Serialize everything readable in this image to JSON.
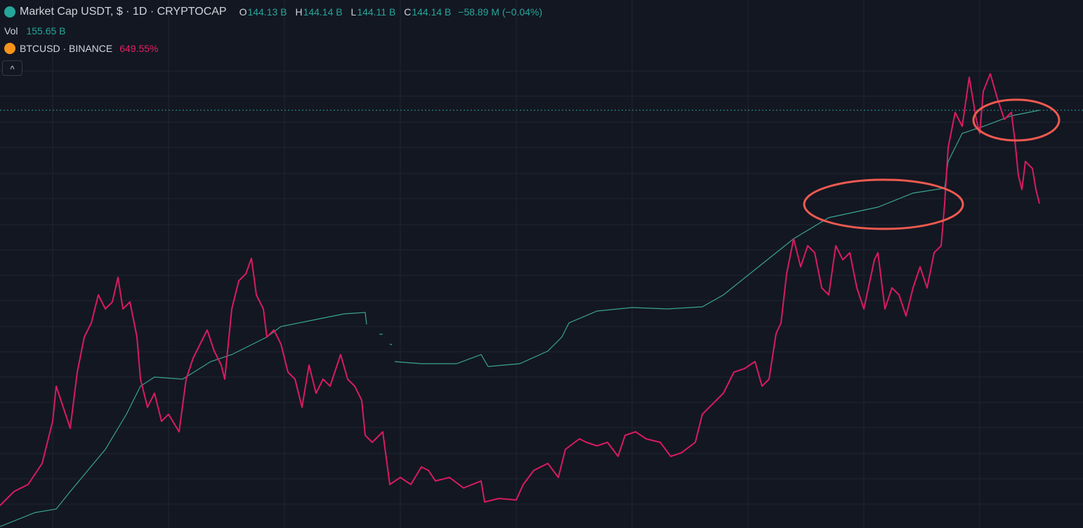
{
  "header": {
    "symbol": "Market Cap USDT, $ · 1D · CRYPTOCAP",
    "ohlc": [
      {
        "key": "O",
        "value": "144.13 B"
      },
      {
        "key": "H",
        "value": "144.14 B"
      },
      {
        "key": "L",
        "value": "144.11 B"
      },
      {
        "key": "C",
        "value": "144.14 B"
      }
    ],
    "change": "−58.89 M (−0.04%)",
    "volume": {
      "key": "Vol",
      "value": "155.65 B"
    },
    "compare": {
      "symbol": "BTCUSD · BINANCE",
      "change": "649.55%"
    },
    "collapse_button": "^"
  }
}
